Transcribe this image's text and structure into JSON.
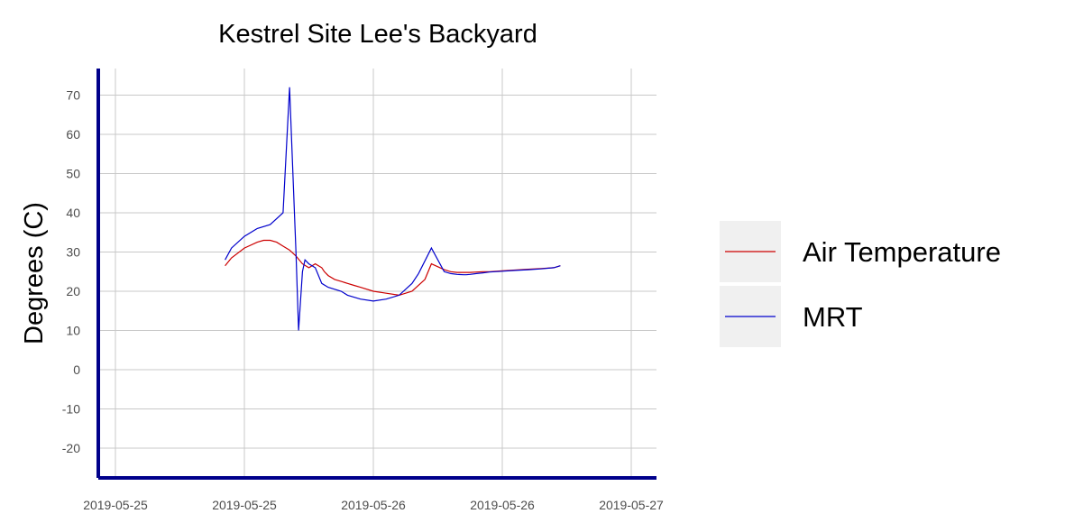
{
  "chart_data": {
    "type": "line",
    "title": "Kestrel Site Lee's Backyard",
    "xlabel": "",
    "ylabel": "Degrees (C)",
    "ylim": [
      -25,
      75
    ],
    "y_ticks": [
      -20,
      -10,
      0,
      10,
      20,
      30,
      40,
      50,
      60,
      70
    ],
    "x_tick_labels": [
      "2019-05-25",
      "2019-05-25",
      "2019-05-26",
      "2019-05-26",
      "2019-05-27"
    ],
    "grid": true,
    "legend_position": "right",
    "series": [
      {
        "name": "Air Temperature",
        "color": "#cc0000",
        "x": [
          0.85,
          0.9,
          1.0,
          1.1,
          1.15,
          1.2,
          1.25,
          1.3,
          1.35,
          1.4,
          1.45,
          1.5,
          1.55,
          1.6,
          1.62,
          1.65,
          1.7,
          1.75,
          1.8,
          1.85,
          1.9,
          2.0,
          2.1,
          2.2,
          2.3,
          2.4,
          2.45,
          2.55,
          2.6,
          2.65,
          2.7,
          2.72,
          2.75,
          2.8,
          2.85,
          2.9,
          3.0,
          3.1,
          3.2,
          3.3,
          3.4,
          3.45
        ],
        "y": [
          26.5,
          28.5,
          31,
          32.5,
          33,
          33,
          32.5,
          31.5,
          30.5,
          29,
          27,
          26,
          27,
          26,
          25,
          24,
          23,
          22.5,
          22,
          21.5,
          21,
          20,
          19.5,
          19,
          20,
          23,
          27,
          25.5,
          25,
          24.8,
          24.8,
          24.8,
          24.8,
          24.9,
          25,
          25,
          25.2,
          25.4,
          25.6,
          25.8,
          26,
          26.5
        ]
      },
      {
        "name": "MRT",
        "color": "#0000cc",
        "x": [
          0.85,
          0.9,
          1.0,
          1.1,
          1.2,
          1.3,
          1.35,
          1.4,
          1.42,
          1.45,
          1.47,
          1.5,
          1.55,
          1.6,
          1.65,
          1.7,
          1.75,
          1.8,
          1.9,
          2.0,
          2.1,
          2.2,
          2.3,
          2.35,
          2.45,
          2.55,
          2.6,
          2.65,
          2.7,
          2.72,
          2.75,
          2.8,
          2.85,
          2.9,
          3.0,
          3.1,
          3.2,
          3.3,
          3.4,
          3.45
        ],
        "y": [
          28,
          31,
          34,
          36,
          37,
          40,
          72,
          30,
          10,
          25,
          28,
          27,
          26,
          22,
          21,
          20.5,
          20,
          19,
          18,
          17.5,
          18,
          19,
          22,
          24.5,
          31,
          25,
          24.5,
          24.3,
          24.2,
          24.2,
          24.3,
          24.5,
          24.7,
          24.9,
          25.1,
          25.3,
          25.5,
          25.7,
          26,
          26.5
        ]
      }
    ]
  }
}
